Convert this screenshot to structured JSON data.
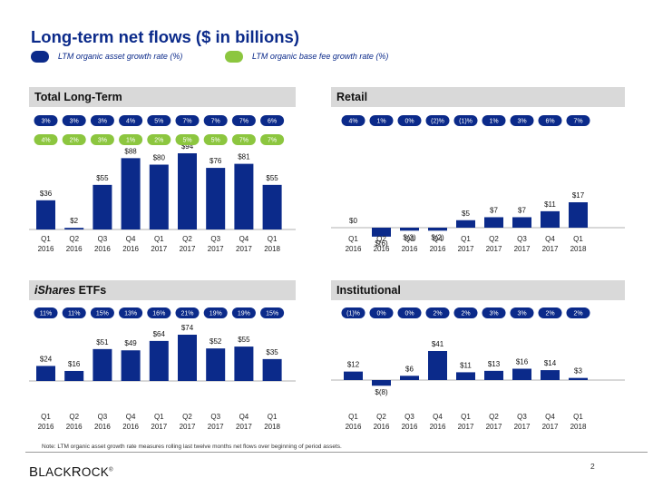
{
  "page": {
    "title": "Long-term net flows ($ in billions)",
    "legend": [
      {
        "label": "LTM organic asset growth rate (%)",
        "color": "#0b2a8a"
      },
      {
        "label": "LTM organic base fee growth rate (%)",
        "color": "#8cc63f"
      }
    ],
    "footnote": "Note: LTM organic asset growth rate measures rolling last twelve months net flows over beginning of period assets.",
    "logo_big1": "B",
    "logo_rest1": "LACK",
    "logo_big2": "R",
    "logo_rest2": "OCK",
    "logo_mark": "®",
    "page_number": "2"
  },
  "colors": {
    "bar": "#0b2a8a",
    "asset_pill": "#0b2a8a",
    "fee_pill": "#8cc63f",
    "header_bg": "#d9d9d9"
  },
  "chart_data": [
    {
      "type": "bar",
      "title": "Total Long-Term",
      "categories": [
        "Q1\n2016",
        "Q2\n2016",
        "Q3\n2016",
        "Q4\n2016",
        "Q1\n2017",
        "Q2\n2017",
        "Q3\n2017",
        "Q4\n2017",
        "Q1\n2018"
      ],
      "values": [
        36,
        2,
        55,
        88,
        80,
        94,
        76,
        81,
        55
      ],
      "value_labels": [
        "$36",
        "$2",
        "$55",
        "$88",
        "$80",
        "$94",
        "$76",
        "$81",
        "$55"
      ],
      "asset_growth": [
        "3%",
        "3%",
        "3%",
        "4%",
        "5%",
        "7%",
        "7%",
        "7%",
        "6%"
      ],
      "fee_growth": [
        "4%",
        "2%",
        "3%",
        "1%",
        "2%",
        "5%",
        "5%",
        "7%",
        "7%"
      ],
      "ylim": [
        0,
        94
      ]
    },
    {
      "type": "bar",
      "title": "Retail",
      "categories": [
        "Q1\n2016",
        "Q2\n2016",
        "Q3\n2016",
        "Q4\n2016",
        "Q1\n2017",
        "Q2\n2017",
        "Q3\n2017",
        "Q4\n2017",
        "Q1\n2018"
      ],
      "values": [
        0,
        -6,
        -2,
        -2,
        5,
        7,
        7,
        11,
        17
      ],
      "value_labels": [
        "$0",
        "$(6)",
        "$(2)",
        "$(2)",
        "$5",
        "$7",
        "$7",
        "$11",
        "$17"
      ],
      "asset_growth": [
        "4%",
        "1%",
        "0%",
        "(2)%",
        "(1)%",
        "1%",
        "3%",
        "6%",
        "7%"
      ],
      "fee_growth": [],
      "ylim": [
        -6,
        17
      ]
    },
    {
      "type": "bar",
      "title": "ETFs",
      "title_prefix": "iShares",
      "categories": [
        "Q1\n2016",
        "Q2\n2016",
        "Q3\n2016",
        "Q4\n2016",
        "Q1\n2017",
        "Q2\n2017",
        "Q3\n2017",
        "Q4\n2017",
        "Q1\n2018"
      ],
      "values": [
        24,
        16,
        51,
        49,
        64,
        74,
        52,
        55,
        35
      ],
      "value_labels": [
        "$24",
        "$16",
        "$51",
        "$49",
        "$64",
        "$74",
        "$52",
        "$55",
        "$35"
      ],
      "asset_growth": [
        "11%",
        "11%",
        "15%",
        "13%",
        "16%",
        "21%",
        "19%",
        "19%",
        "15%"
      ],
      "fee_growth": [],
      "ylim": [
        0,
        74
      ]
    },
    {
      "type": "bar",
      "title": "Institutional",
      "categories": [
        "Q1\n2016",
        "Q2\n2016",
        "Q3\n2016",
        "Q4\n2016",
        "Q1\n2017",
        "Q2\n2017",
        "Q3\n2017",
        "Q4\n2017",
        "Q1\n2018"
      ],
      "values": [
        12,
        -8,
        6,
        41,
        11,
        13,
        16,
        14,
        3
      ],
      "value_labels": [
        "$12",
        "$(8)",
        "$6",
        "$41",
        "$11",
        "$13",
        "$16",
        "$14",
        "$3"
      ],
      "asset_growth": [
        "(1)%",
        "0%",
        "0%",
        "2%",
        "2%",
        "3%",
        "3%",
        "2%",
        "2%"
      ],
      "fee_growth": [],
      "ylim": [
        -8,
        41
      ]
    }
  ]
}
